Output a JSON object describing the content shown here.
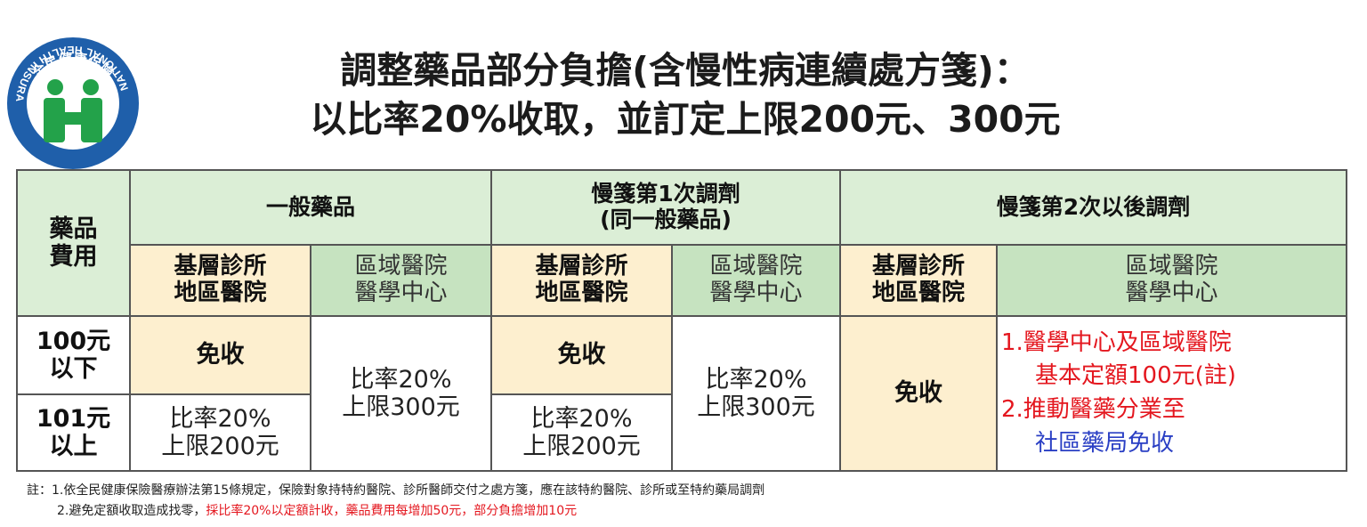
{
  "logo": {
    "icon": "nhi-logo-icon",
    "arc_text": "全民健康保險",
    "ring_text": "NATIONAL HEALTH INSURANCE",
    "colors": {
      "ring": "#1f5faa",
      "figure": "#23a24a"
    }
  },
  "title": {
    "line1": "調整藥品部分負擔(含慢性病連續處方箋)：",
    "line2": "以比率20%收取，並訂定上限200元、300元"
  },
  "table": {
    "row_header": "藥品\n費用",
    "groups": [
      {
        "label": "一般藥品"
      },
      {
        "label": "慢箋第1次調劑\n(同一般藥品)"
      },
      {
        "label": "慢箋第2次以後調劑"
      }
    ],
    "sub_basic": "基層診所\n地區醫院",
    "sub_regional": "區域醫院\n醫學中心",
    "rows": [
      {
        "label": "100元\n以下"
      },
      {
        "label": "101元\n以上"
      }
    ],
    "exempt": "免收",
    "rate_200": "比率20%\n上限200元",
    "rate_300": "比率20%\n上限300元",
    "notes": {
      "line1": "1.醫學中心及區域醫院",
      "line2": "基本定額100元(註)",
      "line3": "2.推動醫藥分業至",
      "line4": "社區藥局免收"
    }
  },
  "footnote": {
    "line1": "註：1.依全民健康保險醫療辦法第15條規定，保險對象持特約醫院、診所醫師交付之處方箋，應在該特約醫院、診所或至特約藥局調劑",
    "line2_a": "2.避免定額收取造成找零，",
    "line2_b": "採比率20%以定額計收，藥品費用每增加50元，部分負擔增加10元"
  },
  "colors": {
    "header_green": "#dbeed6",
    "sub_green": "#c6e3c0",
    "beige": "#fdefcf",
    "red": "#e4171f",
    "blue": "#2a3fc4"
  }
}
